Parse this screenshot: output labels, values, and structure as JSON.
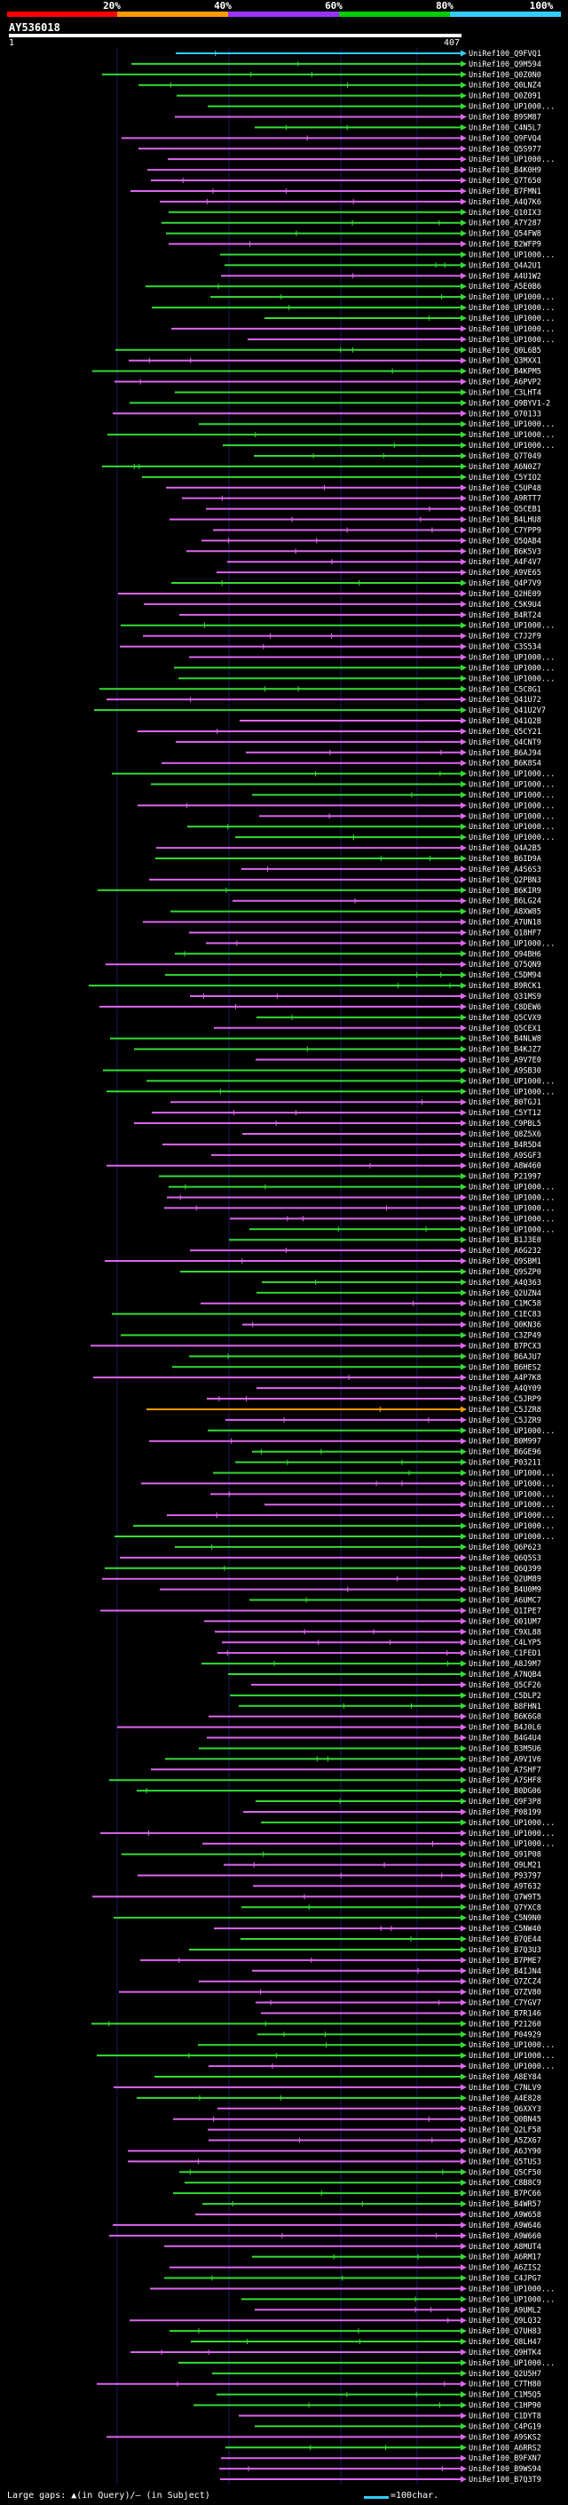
{
  "scale": {
    "labels": [
      "20%",
      "40%",
      "60%",
      "80%",
      "100%"
    ],
    "colors": [
      "#ff0000",
      "#ff9900",
      "#9933ff",
      "#00cc00",
      "#33ccff"
    ]
  },
  "query": {
    "name": "AY536018",
    "start": "1",
    "end": "407"
  },
  "footer": {
    "gaps_text": "Large gaps: ▲(in Query)/— (in Subject)",
    "scale_text": "=100char."
  },
  "palette": {
    "magenta": "#dd66ee",
    "green": "#33dd33",
    "cyan": "#33ccff",
    "orange": "#ff9900",
    "white": "#ffffff"
  },
  "hits": [
    "UniRef100_Q9FVQ1",
    "UniRef100_Q9M594",
    "UniRef100_Q0Z0N0",
    "UniRef100_Q0LNZ4",
    "UniRef100_Q0Z091",
    "UniRef100_UP1000...",
    "UniRef100_B9SM87",
    "UniRef100_C4N5L7",
    "UniRef100_Q9FVQ4",
    "UniRef100_Q5S977",
    "UniRef100_UP1000...",
    "UniRef100_B4K0H9",
    "UniRef100_Q7T650",
    "UniRef100_B7FMN1",
    "UniRef100_A4Q7K6",
    "UniRef100_Q10IX3",
    "UniRef100_A7Y287",
    "UniRef100_Q54FW8",
    "UniRef100_B2WFP9",
    "UniRef100_UP1000...",
    "UniRef100_Q4A2U1",
    "UniRef100_A4U1W2",
    "UniRef100_A5E0B6",
    "UniRef100_UP1000...",
    "UniRef100_UP1000...",
    "UniRef100_UP1000...",
    "UniRef100_UP1000...",
    "UniRef100_UP1000...",
    "UniRef100_Q0L6B5",
    "UniRef100_Q3MXX1",
    "UniRef100_B4KPM5",
    "UniRef100_A6PVP2",
    "UniRef100_C3LHT4",
    "UniRef100_Q9BYV1-2",
    "UniRef100_O70133",
    "UniRef100_UP1000...",
    "UniRef100_UP1000...",
    "UniRef100_UP1000...",
    "UniRef100_Q7T049",
    "UniRef100_A6N0Z7",
    "UniRef100_C5YIO2",
    "UniRef100_C5UP48",
    "UniRef100_A9RTT7",
    "UniRef100_Q5CEB1",
    "UniRef100_B4LHU8",
    "UniRef100_C7YPP9",
    "UniRef100_Q5QAB4",
    "UniRef100_B6K5V3",
    "UniRef100_A4F4V7",
    "UniRef100_A9VE65",
    "UniRef100_Q4P7V9",
    "UniRef100_Q2HE09",
    "UniRef100_C5K9U4",
    "UniRef100_B4RT24",
    "UniRef100_UP1000...",
    "UniRef100_C7J2F9",
    "UniRef100_C3S534",
    "UniRef100_UP1000...",
    "UniRef100_UP1000...",
    "UniRef100_UP1000...",
    "UniRef100_C5C8G1",
    "UniRef100_Q41U72",
    "UniRef100_Q41U2V7",
    "UniRef100_Q41Q2B",
    "UniRef100_Q5CY21",
    "UniRef100_Q4CNT9",
    "UniRef100_B6AJ94",
    "UniRef100_B6K8S4",
    "UniRef100_UP1000...",
    "UniRef100_UP1000...",
    "UniRef100_UP1000...",
    "UniRef100_UP1000...",
    "UniRef100_UP1000...",
    "UniRef100_UP1000...",
    "UniRef100_UP1000...",
    "UniRef100_Q4A2B5",
    "UniRef100_B6ID9A",
    "UniRef100_A4S6S3",
    "UniRef100_Q2PBN3",
    "UniRef100_B6KIR9",
    "UniRef100_B6LG24",
    "UniRef100_A8XW85",
    "UniRef100_A7UN18",
    "UniRef100_Q18HF7",
    "UniRef100_UP1000...",
    "UniRef100_Q94BH6",
    "UniRef100_Q75QN9",
    "UniRef100_C5DM94",
    "UniRef100_B9RCK1",
    "UniRef100_Q31MS9",
    "UniRef100_C8DEW6",
    "UniRef100_Q5CVX9",
    "UniRef100_Q5CEX1",
    "UniRef100_B4NLW8",
    "UniRef100_B4KJZ7",
    "UniRef100_A9V7E0",
    "UniRef100_A9SB30",
    "UniRef100_UP1000...",
    "UniRef100_UP1000...",
    "UniRef100_B0TGJ1",
    "UniRef100_C5YT12",
    "UniRef100_C9PBL5",
    "UniRef100_Q8Z5X6",
    "UniRef100_B4R5D4",
    "UniRef100_A9SGF3",
    "UniRef100_A8W460",
    "UniRef100_P21997",
    "UniRef100_UP1000...",
    "UniRef100_UP1000...",
    "UniRef100_UP1000...",
    "UniRef100_UP1000...",
    "UniRef100_UP1000...",
    "UniRef100_B1J3E0",
    "UniRef100_A6G232",
    "UniRef100_Q9SBM1",
    "UniRef100_Q9SZP0",
    "UniRef100_A4Q363",
    "UniRef100_Q2UZN4",
    "UniRef100_C1MC58",
    "UniRef100_C1EC83",
    "UniRef100_Q0KN36",
    "UniRef100_C3ZP49",
    "UniRef100_B7PCX3",
    "UniRef100_B6AJU7",
    "UniRef100_B6HES2",
    "UniRef100_A4P7K8",
    "UniRef100_A4QY09",
    "UniRef100_C5JRP9",
    "UniRef100_C5JZR8",
    "UniRef100_C5JZR9",
    "UniRef100_UP1000...",
    "UniRef100_B0M997",
    "UniRef100_B6GE96",
    "UniRef100_P03211",
    "UniRef100_UP1000...",
    "UniRef100_UP1000...",
    "UniRef100_UP1000...",
    "UniRef100_UP1000...",
    "UniRef100_UP1000...",
    "UniRef100_UP1000...",
    "UniRef100_UP1000...",
    "UniRef100_Q6P623",
    "UniRef100_Q6Q5S3",
    "UniRef100_Q6Q399",
    "UniRef100_Q2UM89",
    "UniRef100_B4U0M9",
    "UniRef100_A6UMC7",
    "UniRef100_Q1IPE7",
    "UniRef100_Q01UM7",
    "UniRef100_C9XL88",
    "UniRef100_C4LYP5",
    "UniRef100_C1FED1",
    "UniRef100_A8J9M7",
    "UniRef100_A7NQB4",
    "UniRef100_Q5CF26",
    "UniRef100_C5DLP2",
    "UniRef100_B8FHN1",
    "UniRef100_B6K6G8",
    "UniRef100_B4J0L6",
    "UniRef100_B4G4U4",
    "UniRef100_B3M5U6",
    "UniRef100_A9V1V6",
    "UniRef100_A7SHF7",
    "UniRef100_A7SHF8",
    "UniRef100_B0DG06",
    "UniRef100_Q9F3P8",
    "UniRef100_P08199",
    "UniRef100_UP1000...",
    "UniRef100_UP1000...",
    "UniRef100_UP1000...",
    "UniRef100_Q91P08",
    "UniRef100_Q9LM21",
    "UniRef100_P93797",
    "UniRef100_A9T632",
    "UniRef100_Q7W9T5",
    "UniRef100_Q7YXC8",
    "UniRef100_C5N9N0",
    "UniRef100_C5NW40",
    "UniRef100_B7QE44",
    "UniRef100_B7Q3U3",
    "UniRef100_B7PME7",
    "UniRef100_B4IJN4",
    "UniRef100_Q7ZCZ4",
    "UniRef100_Q7ZV80",
    "UniRef100_C7YGV7",
    "UniRef100_B7R146",
    "UniRef100_P21260",
    "UniRef100_P04929",
    "UniRef100_UP1000...",
    "UniRef100_UP1000...",
    "UniRef100_UP1000...",
    "UniRef100_A8EY84",
    "UniRef100_C7NLV9",
    "UniRef100_A4E828",
    "UniRef100_Q6XXY3",
    "UniRef100_Q0BN45",
    "UniRef100_Q2LF58",
    "UniRef100_A5ZX67",
    "UniRef100_A6JY90",
    "UniRef100_Q5TUS3",
    "UniRef100_Q5CF50",
    "UniRef100_C8B8C9",
    "UniRef100_B7PC66",
    "UniRef100_B4WR57",
    "UniRef100_A9W658",
    "UniRef100_A9W646",
    "UniRef100_A9W660",
    "UniRef100_A8MUT4",
    "UniRef100_A6RM17",
    "UniRef100_A6ZIS2",
    "UniRef100_C4JPG7",
    "UniRef100_UP1000...",
    "UniRef100_UP1000...",
    "UniRef100_A9UML2",
    "UniRef100_Q9LQ32",
    "UniRef100_Q7UH83",
    "UniRef100_Q8LH47",
    "UniRef100_Q9HTK4",
    "UniRef100_UP1000...",
    "UniRef100_Q2U5H7",
    "UniRef100_C7TH80",
    "UniRef100_C1M5Q5",
    "UniRef100_C1HP90",
    "UniRef100_C1DYT8",
    "UniRef100_C4PG19",
    "UniRef100_A9SKS2",
    "UniRef100_A6RRS2",
    "UniRef100_B9FXN7",
    "UniRef100_B9WS94",
    "UniRef100_B7Q3T9"
  ]
}
